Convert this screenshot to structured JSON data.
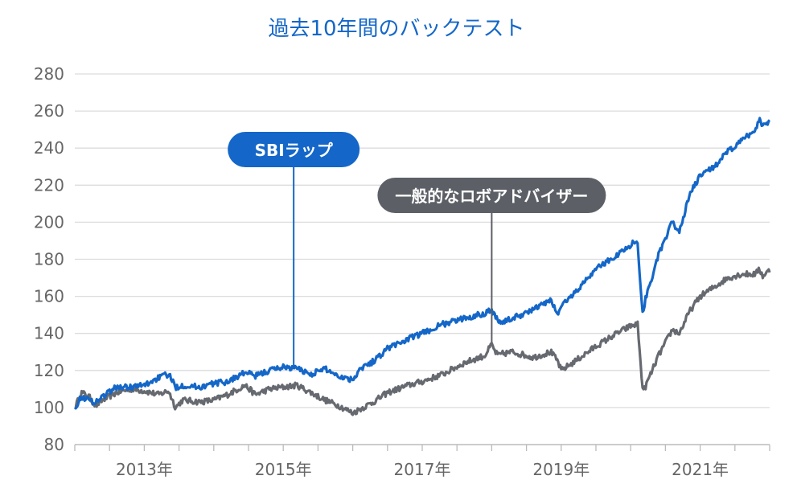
{
  "chart_data": {
    "type": "line",
    "title": "過去10年間のバックテスト",
    "xlabel": "",
    "ylabel": "",
    "ylim": [
      80,
      280
    ],
    "yticks": [
      80,
      100,
      120,
      140,
      160,
      180,
      200,
      220,
      240,
      260,
      280
    ],
    "xlim": [
      2012.0,
      2022.0
    ],
    "xticks": [
      {
        "value": 2013.0,
        "label": "2013年"
      },
      {
        "value": 2015.0,
        "label": "2015年"
      },
      {
        "value": 2017.0,
        "label": "2017年"
      },
      {
        "value": 2019.0,
        "label": "2019年"
      },
      {
        "value": 2021.0,
        "label": "2021年"
      }
    ],
    "grid": true,
    "series": [
      {
        "name": "SBIラップ",
        "color": "#1467c8",
        "x": [
          2012.0,
          2012.1,
          2012.2,
          2012.3,
          2012.4,
          2012.6,
          2012.8,
          2013.0,
          2013.2,
          2013.35,
          2013.45,
          2013.55,
          2013.8,
          2014.0,
          2014.2,
          2014.45,
          2014.6,
          2014.8,
          2015.0,
          2015.2,
          2015.4,
          2015.6,
          2015.8,
          2016.0,
          2016.1,
          2016.3,
          2016.5,
          2016.8,
          2017.0,
          2017.3,
          2017.6,
          2017.9,
          2018.0,
          2018.05,
          2018.1,
          2018.15,
          2018.3,
          2018.6,
          2018.85,
          2018.95,
          2019.0,
          2019.2,
          2019.5,
          2019.8,
          2020.0,
          2020.1,
          2020.15,
          2020.18,
          2020.22,
          2020.4,
          2020.6,
          2020.7,
          2020.85,
          2021.0,
          2021.2,
          2021.4,
          2021.6,
          2021.8,
          2021.85,
          2021.9,
          2022.0
        ],
        "values": [
          100,
          106,
          104,
          103,
          106,
          111,
          111,
          112,
          116,
          118,
          111,
          112,
          111,
          113,
          114,
          119,
          117,
          120,
          122,
          121,
          118,
          121,
          117,
          115,
          121,
          125,
          132,
          137,
          140,
          145,
          148,
          151,
          153,
          149,
          147,
          146,
          148,
          153,
          158,
          150,
          155,
          162,
          175,
          182,
          188,
          190,
          160,
          150,
          160,
          182,
          200,
          195,
          215,
          225,
          230,
          238,
          244,
          250,
          256,
          252,
          255
        ]
      },
      {
        "name": "一般的なロボアドバイザー",
        "color": "#666a70",
        "x": [
          2012.0,
          2012.1,
          2012.2,
          2012.3,
          2012.4,
          2012.6,
          2012.8,
          2013.0,
          2013.2,
          2013.35,
          2013.45,
          2013.55,
          2013.8,
          2014.0,
          2014.2,
          2014.45,
          2014.6,
          2014.8,
          2015.0,
          2015.2,
          2015.4,
          2015.6,
          2015.8,
          2016.0,
          2016.1,
          2016.3,
          2016.5,
          2016.8,
          2017.0,
          2017.3,
          2017.6,
          2017.9,
          2018.0,
          2018.05,
          2018.1,
          2018.15,
          2018.3,
          2018.6,
          2018.85,
          2018.95,
          2019.0,
          2019.2,
          2019.5,
          2019.8,
          2020.0,
          2020.1,
          2020.15,
          2020.18,
          2020.22,
          2020.4,
          2020.6,
          2020.7,
          2020.85,
          2021.0,
          2021.2,
          2021.4,
          2021.6,
          2021.8,
          2021.85,
          2021.9,
          2022.0
        ],
        "values": [
          100,
          108,
          106,
          101,
          104,
          108,
          110,
          109,
          107,
          109,
          100,
          104,
          103,
          104,
          107,
          112,
          107,
          110,
          111,
          112,
          108,
          104,
          101,
          97,
          99,
          103,
          108,
          112,
          114,
          118,
          124,
          128,
          134,
          130,
          128,
          129,
          130,
          127,
          130,
          125,
          120,
          125,
          133,
          140,
          144,
          145,
          120,
          108,
          112,
          128,
          142,
          140,
          152,
          160,
          165,
          170,
          172,
          172,
          175,
          171,
          174
        ]
      }
    ],
    "callouts": [
      {
        "series": "SBIラップ",
        "label": "SBIラップ",
        "x": 2015.15,
        "color": "#1467c8"
      },
      {
        "series": "一般的なロボアドバイザー",
        "label": "一般的なロボアドバイザー",
        "x": 2018.0,
        "color": "#5c6066"
      }
    ]
  }
}
